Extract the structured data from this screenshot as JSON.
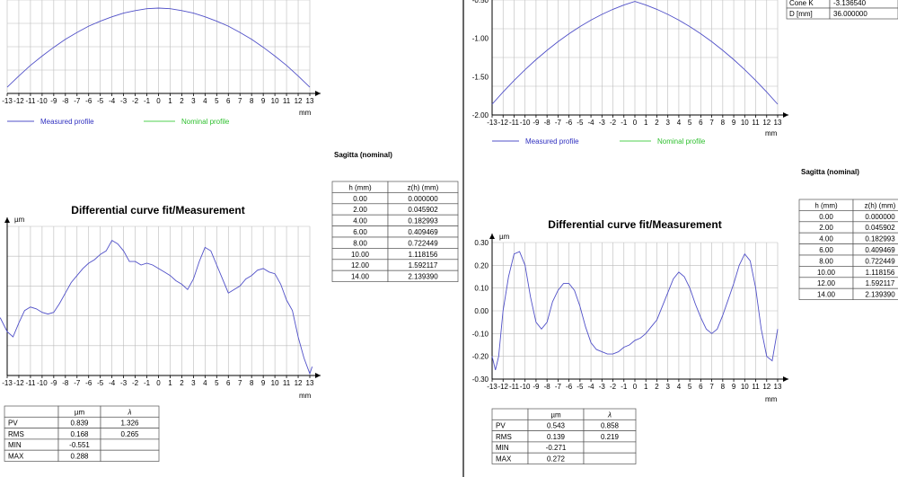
{
  "left": {
    "profile_chart": {
      "type": "line",
      "x_ticks": [
        "-13",
        "-12",
        "-11",
        "-10",
        "-9",
        "-8",
        "-7",
        "-6",
        "-5",
        "-4",
        "-3",
        "-2",
        "-1",
        "0",
        "1",
        "2",
        "3",
        "4",
        "5",
        "6",
        "7",
        "8",
        "9",
        "10",
        "11",
        "12",
        "13"
      ],
      "x_unit": "mm",
      "xlim": [
        -13,
        13
      ],
      "ylim": [
        -2.0,
        -0.5
      ],
      "series": [
        {
          "name": "Measured profile",
          "color": "#5050c8",
          "x": [
            -13,
            -12,
            -11,
            -10,
            -9,
            -8,
            -7,
            -6,
            -5,
            -4,
            -3,
            -2,
            -1,
            0,
            1,
            2,
            3,
            4,
            5,
            6,
            7,
            8,
            9,
            10,
            11,
            12,
            13
          ],
          "y": [
            -1.9,
            -1.72,
            -1.55,
            -1.4,
            -1.26,
            -1.13,
            -1.02,
            -0.92,
            -0.84,
            -0.77,
            -0.71,
            -0.67,
            -0.64,
            -0.63,
            -0.64,
            -0.67,
            -0.71,
            -0.77,
            -0.84,
            -0.92,
            -1.02,
            -1.13,
            -1.26,
            -1.4,
            -1.55,
            -1.72,
            -1.9
          ]
        },
        {
          "name": "Nominal profile",
          "color": "#50d050",
          "x": [],
          "y": []
        }
      ]
    },
    "sagitta_title": "Sagitta (nominal)",
    "sagitta_table": {
      "headers": [
        "h (mm)",
        "z(h) (mm)"
      ],
      "rows": [
        [
          "0.00",
          "0.000000"
        ],
        [
          "2.00",
          "0.045902"
        ],
        [
          "4.00",
          "0.182993"
        ],
        [
          "6.00",
          "0.409469"
        ],
        [
          "8.00",
          "0.722449"
        ],
        [
          "10.00",
          "1.118156"
        ],
        [
          "12.00",
          "1.592117"
        ],
        [
          "14.00",
          "2.139390"
        ]
      ]
    },
    "diff_chart": {
      "type": "line",
      "title": "Differential curve fit/Measurement",
      "y_unit": "µm",
      "x_unit": "mm",
      "x_ticks": [
        "-13",
        "-12",
        "-11",
        "-10",
        "-9",
        "-8",
        "-7",
        "-6",
        "-5",
        "-4",
        "-3",
        "-2",
        "-1",
        "0",
        "1",
        "2",
        "3",
        "4",
        "5",
        "6",
        "7",
        "8",
        "9",
        "10",
        "11",
        "12",
        "13"
      ],
      "xlim": [
        -13,
        13
      ],
      "ylim": [
        -0.55,
        0.3
      ],
      "series": [
        {
          "name": "",
          "color": "#5050c8",
          "x": [
            -13.6,
            -13,
            -12.5,
            -12,
            -11.5,
            -11,
            -10.5,
            -10,
            -9.5,
            -9,
            -8.5,
            -8,
            -7.5,
            -7,
            -6.5,
            -6,
            -5.5,
            -5,
            -4.5,
            -4,
            -3.5,
            -3,
            -2.5,
            -2,
            -1.5,
            -1,
            -0.5,
            0,
            0.5,
            1,
            1.5,
            2,
            2.5,
            3,
            3.5,
            4,
            4.5,
            5,
            5.5,
            6,
            6.5,
            7,
            7.5,
            8,
            8.5,
            9,
            9.5,
            10,
            10.5,
            11,
            11.5,
            12,
            12.5,
            13,
            13.2
          ],
          "y": [
            -0.22,
            -0.3,
            -0.33,
            -0.25,
            -0.18,
            -0.16,
            -0.17,
            -0.19,
            -0.2,
            -0.19,
            -0.14,
            -0.08,
            -0.02,
            0.02,
            0.06,
            0.09,
            0.11,
            0.14,
            0.16,
            0.22,
            0.2,
            0.16,
            0.1,
            0.1,
            0.08,
            0.09,
            0.08,
            0.06,
            0.04,
            0.02,
            -0.01,
            -0.03,
            -0.06,
            0.0,
            0.1,
            0.18,
            0.16,
            0.08,
            0.0,
            -0.08,
            -0.06,
            -0.04,
            0.0,
            0.02,
            0.05,
            0.06,
            0.04,
            0.03,
            -0.03,
            -0.12,
            -0.18,
            -0.33,
            -0.45,
            -0.54,
            -0.5
          ]
        }
      ]
    },
    "stats_table": {
      "headers": [
        "",
        "µm",
        "λ"
      ],
      "rows": [
        [
          "PV",
          "0.839",
          "1.326"
        ],
        [
          "RMS",
          "0.168",
          "0.265"
        ],
        [
          "MIN",
          "-0.551",
          ""
        ],
        [
          "MAX",
          "0.288",
          ""
        ]
      ]
    }
  },
  "right": {
    "info_rows": [
      [
        "Cone K",
        "-3.136540"
      ],
      [
        "D [mm]",
        "36.000000"
      ]
    ],
    "profile_chart": {
      "type": "line",
      "y_ticks": [
        "-0.50",
        "-1.00",
        "-1.50",
        "-2.00"
      ],
      "x_ticks": [
        "-13",
        "-12",
        "-11",
        "-10",
        "-9",
        "-8",
        "-7",
        "-6",
        "-5",
        "-4",
        "-3",
        "-2",
        "-1",
        "0",
        "1",
        "2",
        "3",
        "4",
        "5",
        "6",
        "7",
        "8",
        "9",
        "10",
        "11",
        "12",
        "13"
      ],
      "x_unit": "mm",
      "xlim": [
        -13,
        13
      ],
      "ylim": [
        -2.0,
        -0.4
      ],
      "series": [
        {
          "name": "Measured profile",
          "color": "#5050c8",
          "x": [
            -13,
            -12,
            -11,
            -10,
            -9,
            -8,
            -7,
            -6,
            -5,
            -4,
            -3,
            -2,
            -1,
            0,
            1,
            2,
            3,
            4,
            5,
            6,
            7,
            8,
            9,
            10,
            11,
            12,
            13
          ],
          "y": [
            -1.85,
            -1.68,
            -1.52,
            -1.37,
            -1.23,
            -1.1,
            -0.98,
            -0.87,
            -0.77,
            -0.68,
            -0.6,
            -0.53,
            -0.47,
            -0.42,
            -0.47,
            -0.53,
            -0.6,
            -0.68,
            -0.77,
            -0.87,
            -0.98,
            -1.1,
            -1.23,
            -1.37,
            -1.52,
            -1.68,
            -1.85
          ]
        },
        {
          "name": "Nominal profile",
          "color": "#50d050",
          "x": [],
          "y": []
        }
      ]
    },
    "sagitta_title": "Sagitta (nominal)",
    "sagitta_table": {
      "headers": [
        "h (mm)",
        "z(h) (mm)"
      ],
      "rows": [
        [
          "0.00",
          "0.000000"
        ],
        [
          "2.00",
          "0.045902"
        ],
        [
          "4.00",
          "0.182993"
        ],
        [
          "6.00",
          "0.409469"
        ],
        [
          "8.00",
          "0.722449"
        ],
        [
          "10.00",
          "1.118156"
        ],
        [
          "12.00",
          "1.592117"
        ],
        [
          "14.00",
          "2.139390"
        ]
      ]
    },
    "diff_chart": {
      "type": "line",
      "title": "Differential curve fit/Measurement",
      "y_unit": "µm",
      "x_unit": "mm",
      "y_ticks": [
        "0.30",
        "0.20",
        "0.10",
        "0.00",
        "-0.10",
        "-0.20",
        "-0.30"
      ],
      "x_ticks": [
        "-13",
        "-12",
        "-11",
        "-10",
        "-9",
        "-8",
        "-7",
        "-6",
        "-5",
        "-4",
        "-3",
        "-2",
        "-1",
        "0",
        "1",
        "2",
        "3",
        "4",
        "5",
        "6",
        "7",
        "8",
        "9",
        "10",
        "11",
        "12",
        "13"
      ],
      "xlim": [
        -13,
        13
      ],
      "ylim": [
        -0.3,
        0.3
      ],
      "series": [
        {
          "name": "",
          "color": "#5050c8",
          "x": [
            -13,
            -12.7,
            -12.4,
            -12,
            -11.5,
            -11,
            -10.5,
            -10,
            -9.5,
            -9,
            -8.5,
            -8,
            -7.5,
            -7,
            -6.5,
            -6,
            -5.5,
            -5,
            -4.5,
            -4,
            -3.5,
            -3,
            -2.5,
            -2,
            -1.5,
            -1,
            -0.5,
            0,
            0.5,
            1,
            1.5,
            2,
            2.5,
            3,
            3.5,
            4,
            4.5,
            5,
            5.5,
            6,
            6.5,
            7,
            7.5,
            8,
            8.5,
            9,
            9.5,
            10,
            10.5,
            11,
            11.5,
            12,
            12.5,
            13
          ],
          "y": [
            -0.2,
            -0.26,
            -0.2,
            0.0,
            0.15,
            0.25,
            0.26,
            0.2,
            0.06,
            -0.05,
            -0.08,
            -0.05,
            0.04,
            0.09,
            0.12,
            0.12,
            0.09,
            0.02,
            -0.07,
            -0.14,
            -0.17,
            -0.18,
            -0.19,
            -0.19,
            -0.18,
            -0.16,
            -0.15,
            -0.13,
            -0.12,
            -0.1,
            -0.07,
            -0.04,
            0.02,
            0.08,
            0.14,
            0.17,
            0.15,
            0.1,
            0.03,
            -0.03,
            -0.08,
            -0.1,
            -0.08,
            -0.02,
            0.05,
            0.12,
            0.2,
            0.25,
            0.22,
            0.1,
            -0.08,
            -0.2,
            -0.22,
            -0.08
          ]
        }
      ]
    },
    "stats_table": {
      "headers": [
        "",
        "µm",
        "λ"
      ],
      "rows": [
        [
          "PV",
          "0.543",
          "0.858"
        ],
        [
          "RMS",
          "0.139",
          "0.219"
        ],
        [
          "MIN",
          "-0.271",
          ""
        ],
        [
          "MAX",
          "0.272",
          ""
        ]
      ]
    }
  }
}
